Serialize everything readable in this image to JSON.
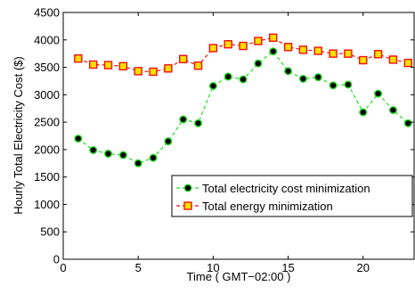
{
  "chart_data": {
    "type": "line",
    "title": "",
    "xlabel": "Time ( GMT−02:00 )",
    "ylabel": "Hourly Total Electricity Cost ($)",
    "xlim": [
      0,
      23.4
    ],
    "ylim": [
      0,
      4500
    ],
    "x_ticks": [
      0,
      5,
      10,
      15,
      20
    ],
    "x_tick_labels": [
      "0",
      "5",
      "10",
      "15",
      "20"
    ],
    "y_ticks": [
      0,
      500,
      1000,
      1500,
      2000,
      2500,
      3000,
      3500,
      4000,
      4500
    ],
    "y_tick_labels": [
      "0",
      "500",
      "1000",
      "1500",
      "2000",
      "2500",
      "3000",
      "3500",
      "4000",
      "4500"
    ],
    "grid": false,
    "legend_position": "lower-right",
    "x": [
      1,
      2,
      3,
      4,
      5,
      6,
      7,
      8,
      9,
      10,
      11,
      12,
      13,
      14,
      15,
      16,
      17,
      18,
      19,
      20,
      21,
      22,
      23
    ],
    "series": [
      {
        "name": "Total electricity cost minimization",
        "color": "#22dd22",
        "marker": "circle",
        "marker_fill": "#000000",
        "line_style": "dashed",
        "values": [
          2200,
          1990,
          1925,
          1900,
          1750,
          1850,
          2150,
          2550,
          2480,
          3160,
          3330,
          3280,
          3570,
          3790,
          3430,
          3290,
          3320,
          3170,
          3185,
          2680,
          3020,
          2720,
          2480
        ]
      },
      {
        "name": "Total energy minimization",
        "color": "#ee1111",
        "marker": "square",
        "marker_fill": "#ffdd00",
        "line_style": "dashed",
        "values": [
          3660,
          3550,
          3540,
          3520,
          3430,
          3420,
          3480,
          3650,
          3530,
          3850,
          3920,
          3890,
          3980,
          4040,
          3870,
          3820,
          3800,
          3750,
          3750,
          3630,
          3740,
          3640,
          3580
        ]
      }
    ]
  }
}
